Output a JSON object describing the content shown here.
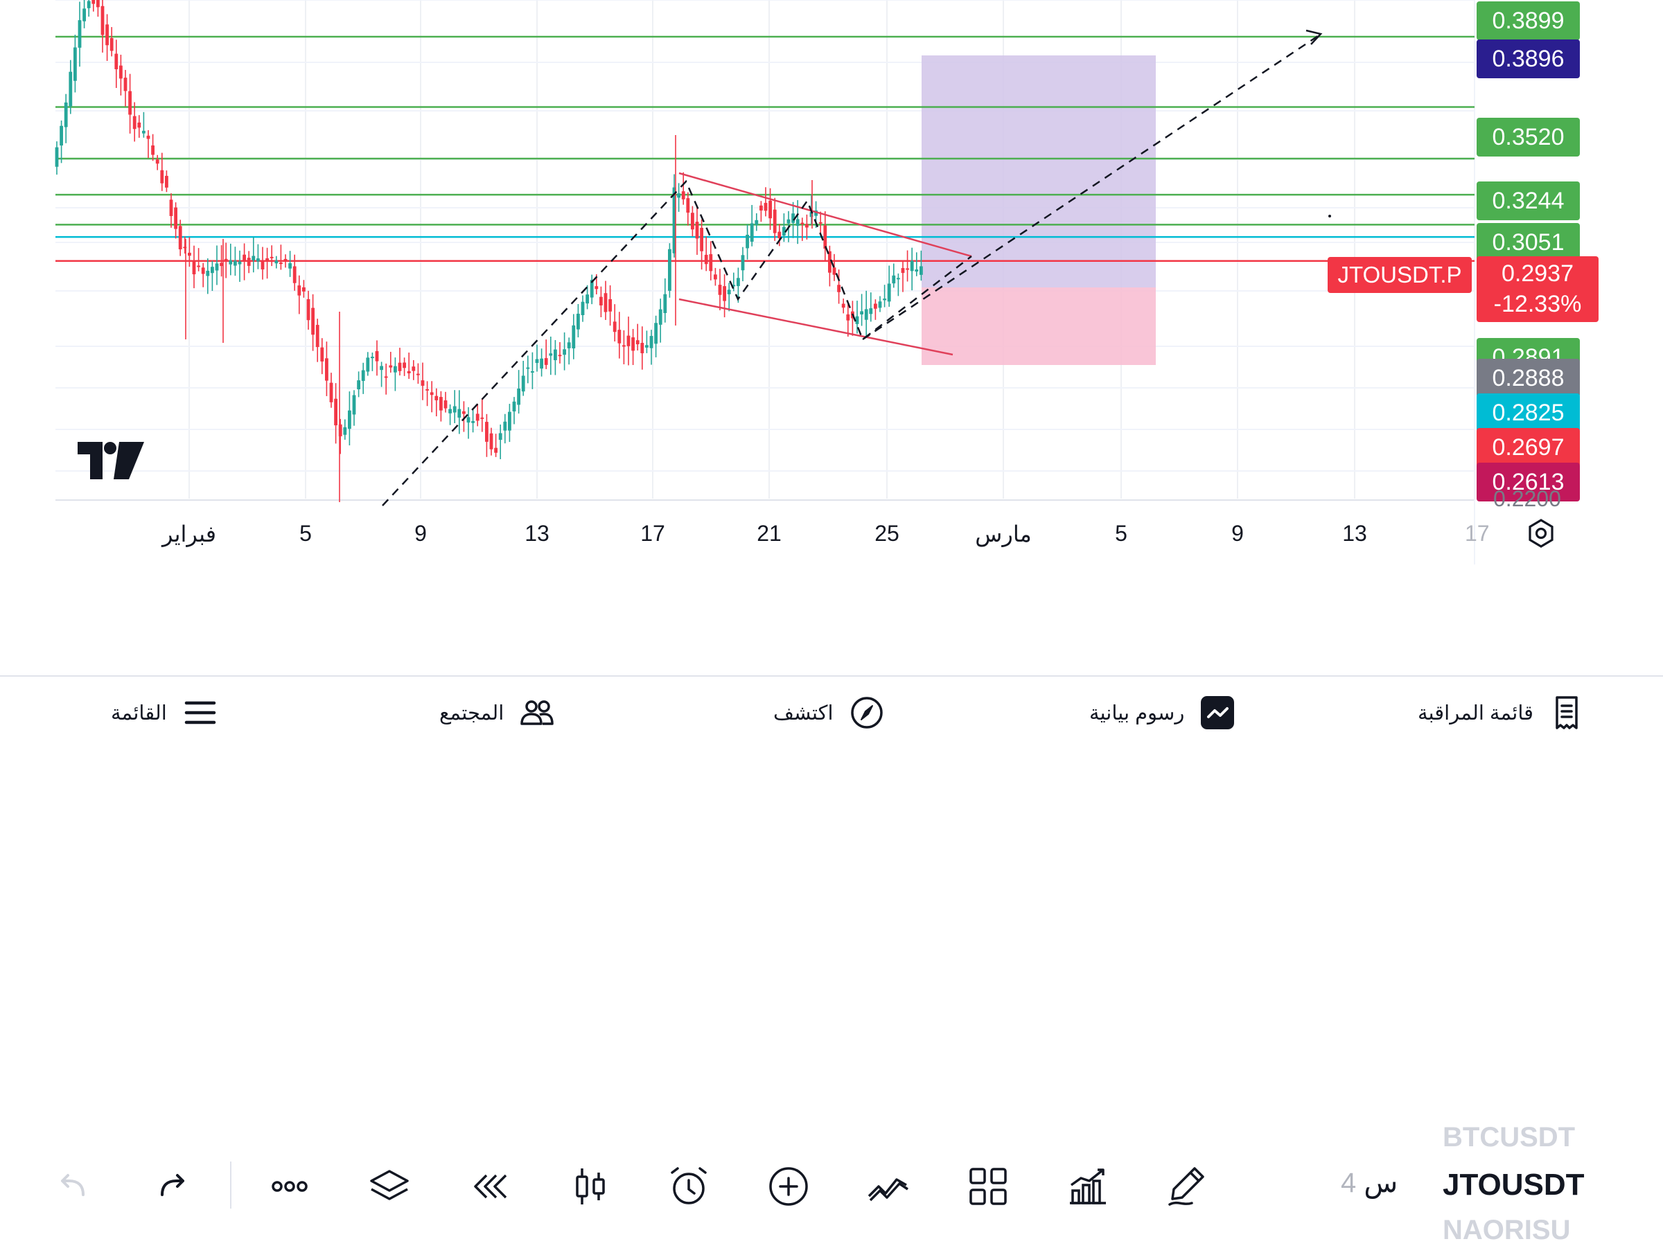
{
  "chart": {
    "price_tags": [
      {
        "label": "0.3899",
        "color": "#4caf50"
      },
      {
        "label": "0.3896",
        "color": "#2a1e8f"
      },
      {
        "label": "0.3520",
        "color": "#4caf50"
      },
      {
        "label": "0.3244",
        "color": "#4caf50"
      },
      {
        "label": "0.3051",
        "color": "#4caf50"
      },
      {
        "label": "0.2891",
        "color": "#4caf50"
      },
      {
        "label": "0.2888",
        "color": "#787b86"
      },
      {
        "label": "0.2825",
        "color": "#00bcd4"
      },
      {
        "label": "0.2697",
        "color": "#f23645"
      },
      {
        "label": "0.2613",
        "color": "#c2185b"
      }
    ],
    "symbol_tag": "JTOUSDT.P",
    "current_price": "0.2937",
    "current_change": "-12.33%",
    "cut_tick": "0.2200",
    "x_ticks": [
      "فبراير",
      "5",
      "9",
      "13",
      "17",
      "21",
      "25",
      "مارس",
      "5",
      "9",
      "13",
      "17"
    ],
    "colors": {
      "up": "#26a69a",
      "down": "#f23645",
      "level": "#4caf50",
      "pattern": "#e0405a",
      "cyan": "#00bcd4",
      "target_zone": "#d1c4e9",
      "stop_zone": "#f8bbd0"
    }
  },
  "toolbar": {
    "icons": [
      "undo-icon",
      "redo-icon",
      "more-icon",
      "layers-icon",
      "replay-icon",
      "candles-icon",
      "alert-icon",
      "add-icon",
      "drawings-icon",
      "layout-icon",
      "indicators-icon",
      "pencil-icon"
    ],
    "interval_num": "4",
    "interval_unit": "س",
    "symbol_prev": "BTCUSDT",
    "symbol_current": "JTOUSDT",
    "symbol_next": "NAORISU"
  },
  "bottom_nav": {
    "menu": "القائمة",
    "community": "المجتمع",
    "explore": "اكتشف",
    "charts": "رسوم بيانية",
    "watchlist": "قائمة المراقبة"
  }
}
